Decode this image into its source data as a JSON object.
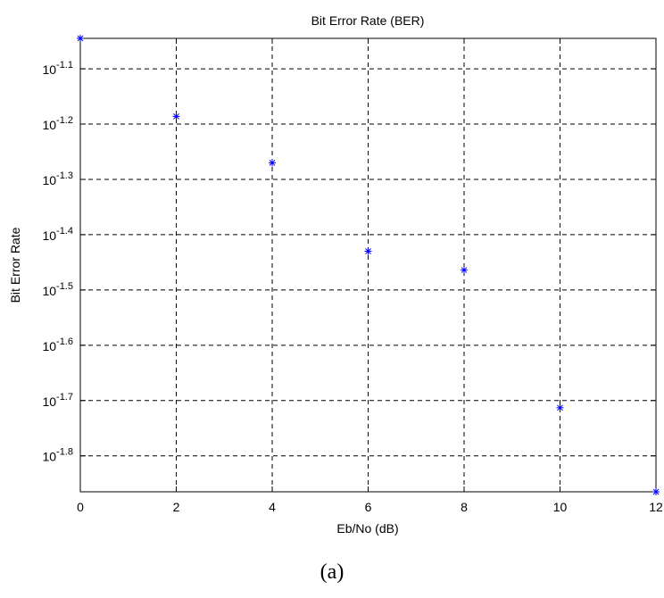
{
  "chart_data": {
    "type": "scatter",
    "title": "Bit Error Rate (BER)",
    "xlabel": "Eb/No (dB)",
    "ylabel": "Bit Error Rate",
    "x_scale": "linear",
    "y_scale": "log",
    "xlim": [
      0,
      12
    ],
    "ylim_log10": [
      -1.865,
      -1.045
    ],
    "x_ticks": [
      "0",
      "2",
      "4",
      "6",
      "8",
      "10",
      "12"
    ],
    "y_ticks": [
      {
        "base": "10",
        "exp": "-1.1",
        "log10": -1.1
      },
      {
        "base": "10",
        "exp": "-1.2",
        "log10": -1.2
      },
      {
        "base": "10",
        "exp": "-1.3",
        "log10": -1.3
      },
      {
        "base": "10",
        "exp": "-1.4",
        "log10": -1.4
      },
      {
        "base": "10",
        "exp": "-1.5",
        "log10": -1.5
      },
      {
        "base": "10",
        "exp": "-1.6",
        "log10": -1.6
      },
      {
        "base": "10",
        "exp": "-1.7",
        "log10": -1.7
      },
      {
        "base": "10",
        "exp": "-1.8",
        "log10": -1.8
      }
    ],
    "grid": true,
    "marker": "*",
    "marker_color": "#0000ff",
    "points": [
      {
        "x": 0,
        "log10_y": -1.045
      },
      {
        "x": 2,
        "log10_y": -1.186
      },
      {
        "x": 4,
        "log10_y": -1.27
      },
      {
        "x": 6,
        "log10_y": -1.43
      },
      {
        "x": 8,
        "log10_y": -1.464
      },
      {
        "x": 10,
        "log10_y": -1.713
      },
      {
        "x": 12,
        "log10_y": -1.865
      }
    ]
  },
  "caption": "(a)"
}
